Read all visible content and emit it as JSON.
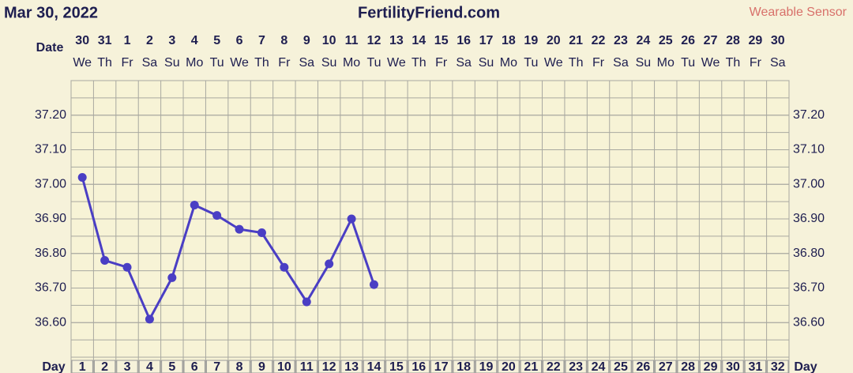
{
  "chart_data": {
    "type": "line",
    "date": "Mar 30, 2022",
    "title": "FertilityFriend.com",
    "source": "Wearable Sensor",
    "date_row_label": "Date",
    "day_row_label": "Day",
    "dates": [
      "30",
      "31",
      "1",
      "2",
      "3",
      "4",
      "5",
      "6",
      "7",
      "8",
      "9",
      "10",
      "11",
      "12",
      "13",
      "14",
      "15",
      "16",
      "17",
      "18",
      "19",
      "20",
      "21",
      "22",
      "23",
      "24",
      "25",
      "26",
      "27",
      "28",
      "29",
      "30"
    ],
    "weekdays": [
      "We",
      "Th",
      "Fr",
      "Sa",
      "Su",
      "Mo",
      "Tu",
      "We",
      "Th",
      "Fr",
      "Sa",
      "Su",
      "Mo",
      "Tu",
      "We",
      "Th",
      "Fr",
      "Sa",
      "Su",
      "Mo",
      "Tu",
      "We",
      "Th",
      "Fr",
      "Sa",
      "Su",
      "Mo",
      "Tu",
      "We",
      "Th",
      "Fr",
      "Sa"
    ],
    "categories": [
      1,
      2,
      3,
      4,
      5,
      6,
      7,
      8,
      9,
      10,
      11,
      12,
      13,
      14,
      15,
      16,
      17,
      18,
      19,
      20,
      21,
      22,
      23,
      24,
      25,
      26,
      27,
      28,
      29,
      30,
      31,
      32
    ],
    "values": [
      37.02,
      36.78,
      36.76,
      36.61,
      36.73,
      36.94,
      36.91,
      36.87,
      36.86,
      36.76,
      36.66,
      36.77,
      36.9,
      36.71,
      null,
      null,
      null,
      null,
      null,
      null,
      null,
      null,
      null,
      null,
      null,
      null,
      null,
      null,
      null,
      null,
      null,
      null
    ],
    "color": "#4a3ec4",
    "ylim": [
      36.5,
      37.3
    ],
    "yticks": [
      {
        "value": 36.6,
        "label": "36.60"
      },
      {
        "value": 36.7,
        "label": "36.70"
      },
      {
        "value": 36.8,
        "label": "36.80"
      },
      {
        "value": 36.9,
        "label": "36.90"
      },
      {
        "value": 37.0,
        "label": "37.00"
      },
      {
        "value": 37.1,
        "label": "37.10"
      },
      {
        "value": 37.2,
        "label": "37.20"
      }
    ],
    "grid": true
  }
}
